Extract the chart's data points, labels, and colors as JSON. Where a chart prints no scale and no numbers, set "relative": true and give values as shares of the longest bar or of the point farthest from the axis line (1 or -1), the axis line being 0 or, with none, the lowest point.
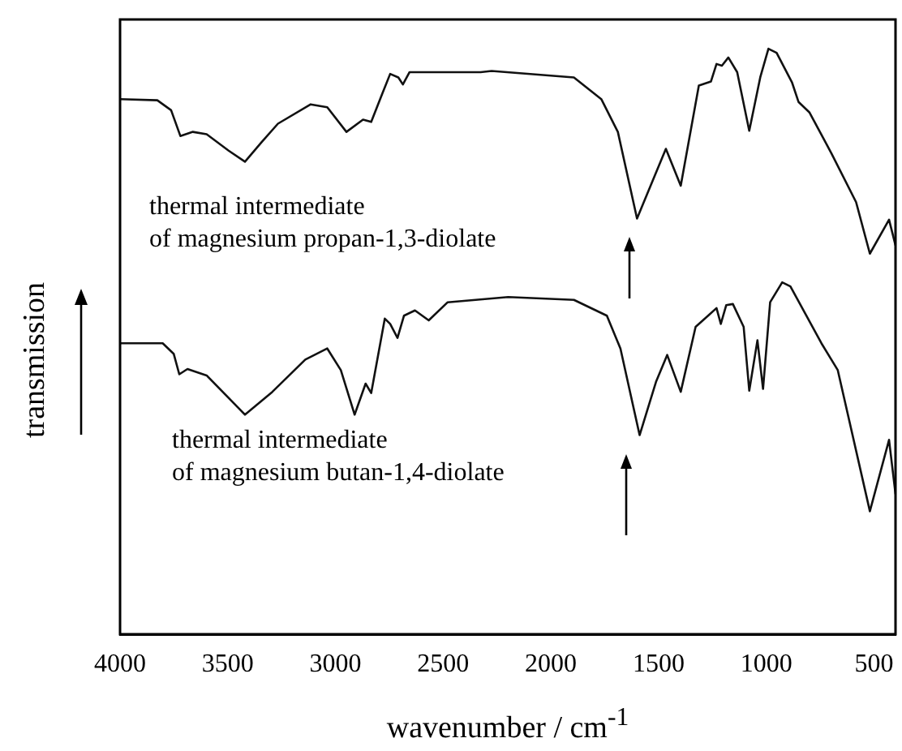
{
  "chart_data": {
    "type": "line",
    "relative": true,
    "xlabel": "wavenumber / cm$^{-1}$",
    "ylabel": "transmission",
    "xlim": [
      4000,
      400
    ],
    "xticks": [
      4000,
      3500,
      3000,
      2500,
      2000,
      1500,
      1000,
      500
    ],
    "grid": false,
    "legend": false,
    "marker": "none",
    "line_style": "solid",
    "annotations": [
      "thermal intermediate\nof magnesium propan-1,3-diolate",
      "thermal intermediate\nof magnesium butan-1,4-diolate"
    ],
    "series": [
      {
        "color": "#111111",
        "x": [
          4000,
          3827,
          3763,
          3720,
          3662,
          3598,
          3496,
          3420,
          3344,
          3267,
          3115,
          3038,
          2949,
          2872,
          2834,
          2783,
          2746,
          2708,
          2687,
          2656,
          2326,
          2275,
          1893,
          1766,
          1689,
          1600,
          1537,
          1466,
          1397,
          1313,
          1257,
          1231,
          1206,
          1176,
          1135,
          1079,
          1028,
          990,
          952,
          880,
          850,
          799,
          697,
          583,
          519,
          430,
          400
        ],
        "values": [
          0.914,
          0.912,
          0.895,
          0.851,
          0.858,
          0.854,
          0.826,
          0.807,
          0.84,
          0.872,
          0.905,
          0.9,
          0.858,
          0.879,
          0.875,
          0.923,
          0.957,
          0.951,
          0.939,
          0.96,
          0.96,
          0.962,
          0.951,
          0.914,
          0.858,
          0.71,
          0.766,
          0.829,
          0.766,
          0.937,
          0.944,
          0.974,
          0.971,
          0.985,
          0.96,
          0.86,
          0.951,
          1,
          0.993,
          0.942,
          0.909,
          0.891,
          0.821,
          0.738,
          0.65,
          0.708,
          0.664
        ]
      },
      {
        "color": "#111111",
        "x": [
          4000,
          3802,
          3751,
          3725,
          3687,
          3598,
          3420,
          3293,
          3140,
          3038,
          2975,
          2911,
          2860,
          2834,
          2771,
          2746,
          2712,
          2682,
          2631,
          2567,
          2479,
          2198,
          1893,
          1740,
          1677,
          1588,
          1511,
          1460,
          1397,
          1328,
          1270,
          1231,
          1211,
          1186,
          1155,
          1105,
          1079,
          1041,
          1015,
          982,
          926,
          888,
          744,
          668,
          519,
          430,
          400
        ],
        "values": [
          0.497,
          0.497,
          0.479,
          0.444,
          0.453,
          0.442,
          0.375,
          0.414,
          0.469,
          0.488,
          0.451,
          0.375,
          0.428,
          0.412,
          0.539,
          0.53,
          0.506,
          0.544,
          0.553,
          0.536,
          0.567,
          0.576,
          0.571,
          0.544,
          0.488,
          0.34,
          0.432,
          0.477,
          0.414,
          0.525,
          0.544,
          0.557,
          0.53,
          0.562,
          0.564,
          0.525,
          0.416,
          0.502,
          0.419,
          0.567,
          0.601,
          0.594,
          0.497,
          0.451,
          0.21,
          0.332,
          0.239
        ]
      }
    ]
  }
}
